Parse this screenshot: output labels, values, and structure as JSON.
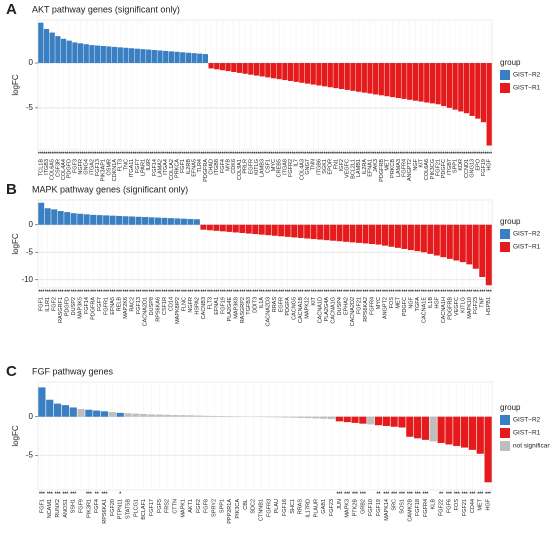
{
  "chart_data": [
    {
      "panel": "A",
      "type": "bar",
      "title": "AKT pathway genes (significant only)",
      "ylabel": "logFC",
      "legend_title": "group",
      "categories": [
        "TCL1B",
        "ITGB3",
        "COL6A5",
        "CSF3R",
        "COL4A4",
        "PDGFD",
        "FGF3",
        "NGFR",
        "GNG4",
        "ITGA2",
        "FGF13",
        "PIK3AP1",
        "OSMR",
        "CDKN1A",
        "FLT3",
        "TNC",
        "ITGA11",
        "FGF7",
        "LPAR1",
        "IL6R",
        "FGF14",
        "LAMA2",
        "ITGA4",
        "COL1A2",
        "PRKCA",
        "FGF1",
        "IL2RB",
        "EFNA5",
        "TLR4",
        "PDGFRA",
        "CHAD",
        "ITGB8",
        "FGF4",
        "MYB",
        "CDK6",
        "COL9A1",
        "PRLR",
        "EGFR",
        "KITLG",
        "LAMB3",
        "CSF1",
        "MYC",
        "CREB5",
        "ITGA8",
        "FGFR2",
        "IL7",
        "COL4A3",
        "GNG7",
        "TNN",
        "ITGB6",
        "SGK1",
        "EPOR",
        "FN1",
        "IGF2",
        "VEGFC",
        "BCL2L1",
        "LAMB1",
        "IL2RA",
        "EFNA1",
        "JAK3",
        "PDGFRB",
        "MET",
        "PRKCB",
        "LAMA3",
        "FGFR4",
        "ANGPT2",
        "NGF",
        "KIT",
        "COL6A6",
        "PIK3CG",
        "FGF21",
        "PDGFC",
        "ITGB7",
        "SPP1",
        "KDR",
        "CCND1",
        "GNG13",
        "EPO",
        "FGF19",
        "HGF"
      ],
      "series": [
        {
          "name": "GIST−R2",
          "color": "#3a7fc1",
          "values": [
            4.5,
            3.8,
            3.4,
            3.0,
            2.7,
            2.5,
            2.3,
            2.2,
            2.1,
            2.0,
            1.95,
            1.9,
            1.85,
            1.8,
            1.75,
            1.7,
            1.65,
            1.6,
            1.55,
            1.5,
            1.45,
            1.4,
            1.35,
            1.3,
            1.25,
            1.2,
            1.15,
            1.1,
            1.05,
            1.0,
            null,
            null,
            null,
            null,
            null,
            null,
            null,
            null,
            null,
            null,
            null,
            null,
            null,
            null,
            null,
            null,
            null,
            null,
            null,
            null,
            null,
            null,
            null,
            null,
            null,
            null,
            null,
            null,
            null,
            null,
            null,
            null,
            null,
            null,
            null,
            null,
            null,
            null,
            null,
            null,
            null,
            null,
            null,
            null,
            null,
            null,
            null,
            null,
            null,
            null
          ]
        },
        {
          "name": "GIST−R1",
          "color": "#e41a1c",
          "values": [
            null,
            null,
            null,
            null,
            null,
            null,
            null,
            null,
            null,
            null,
            null,
            null,
            null,
            null,
            null,
            null,
            null,
            null,
            null,
            null,
            null,
            null,
            null,
            null,
            null,
            null,
            null,
            null,
            null,
            null,
            -0.6,
            -0.7,
            -0.8,
            -0.9,
            -1.0,
            -1.1,
            -1.2,
            -1.3,
            -1.4,
            -1.5,
            -1.6,
            -1.7,
            -1.8,
            -1.9,
            -2.0,
            -2.1,
            -2.2,
            -2.3,
            -2.4,
            -2.5,
            -2.6,
            -2.7,
            -2.8,
            -2.9,
            -3.0,
            -3.1,
            -3.2,
            -3.3,
            -3.4,
            -3.5,
            -3.6,
            -3.7,
            -3.8,
            -3.9,
            -4.0,
            -4.1,
            -4.2,
            -4.3,
            -4.4,
            -4.5,
            -4.6,
            -4.8,
            -5.0,
            -5.2,
            -5.4,
            -5.6,
            -5.9,
            -6.2,
            -6.6,
            -9.2
          ]
        }
      ],
      "significance": [
        "***",
        "***",
        "***",
        "***",
        "***",
        "***",
        "***",
        "***",
        "***",
        "***",
        "***",
        "***",
        "***",
        "***",
        "***",
        "***",
        "***",
        "***",
        "***",
        "***",
        "***",
        "***",
        "***",
        "***",
        "***",
        "***",
        "***",
        "***",
        "***",
        "***",
        "***",
        "***",
        "***",
        "***",
        "***",
        "***",
        "***",
        "***",
        "***",
        "***",
        "***",
        "***",
        "***",
        "***",
        "***",
        "***",
        "***",
        "***",
        "***",
        "***",
        "***",
        "***",
        "***",
        "***",
        "***",
        "***",
        "***",
        "***",
        "***",
        "***",
        "***",
        "***",
        "***",
        "***",
        "***",
        "***",
        "***",
        "***",
        "***",
        "***",
        "***",
        "***",
        "***",
        "***",
        "***",
        "***",
        "***",
        "***",
        "***",
        "***"
      ],
      "ylim": [
        -9.7,
        4.8
      ],
      "yticks": [
        0,
        -5
      ],
      "grid": true
    },
    {
      "panel": "B",
      "type": "bar",
      "title": "MAPK pathway genes (significant only)",
      "ylabel": "logFC",
      "legend_title": "group",
      "categories": [
        "FGF1",
        "IL1R1",
        "FGF2",
        "RASGRF1",
        "PDGFD",
        "DUSP2",
        "MAP3K5",
        "FGF14",
        "PDGFRA",
        "FGF7",
        "FGFR1",
        "EFNA5",
        "RELB",
        "MAP2K6",
        "RAC2",
        "FGF13",
        "CACNA2D1",
        "DUSP8",
        "RPS6KA6",
        "CSF1R",
        "CD14",
        "MAPK8IP2",
        "FLNC",
        "NGFR",
        "HSPA2",
        "CACNB3",
        "FLT3",
        "EFNA1",
        "FGF19",
        "PLA2G4E",
        "MAP3K8",
        "RASGRP2",
        "TGFB3",
        "DDIT3",
        "IL1A",
        "CACNA2D3",
        "RRAS",
        "EGFR",
        "PDGFA",
        "CACNG5",
        "CACNA1B",
        "MAPK12",
        "KIT",
        "CACNA1D",
        "PLA2G4A",
        "CACNA1G",
        "DUSP4",
        "EPHA2",
        "CACNA2D2",
        "FGF21",
        "RPS6KA2",
        "FGFR4",
        "MYC",
        "ANGPT2",
        "FOS",
        "MET",
        "PDGFC",
        "NGF",
        "TGFA",
        "CACNA1E",
        "IL1B",
        "HGF",
        "CACNA1H",
        "PDGFRB",
        "VEGFC",
        "KITLG",
        "MAPK10",
        "FGF23",
        "TNF",
        "HSPB1"
      ],
      "series": [
        {
          "name": "GIST−R2",
          "color": "#3a7fc1",
          "values": [
            4.0,
            3.0,
            2.8,
            2.5,
            2.3,
            2.1,
            2.0,
            1.9,
            1.8,
            1.75,
            1.7,
            1.65,
            1.6,
            1.55,
            1.5,
            1.45,
            1.4,
            1.35,
            1.3,
            1.25,
            1.2,
            1.15,
            1.1,
            1.05,
            1.0,
            null,
            null,
            null,
            null,
            null,
            null,
            null,
            null,
            null,
            null,
            null,
            null,
            null,
            null,
            null,
            null,
            null,
            null,
            null,
            null,
            null,
            null,
            null,
            null,
            null,
            null,
            null,
            null,
            null,
            null,
            null,
            null,
            null,
            null,
            null,
            null,
            null,
            null,
            null,
            null,
            null,
            null,
            null,
            null,
            null
          ]
        },
        {
          "name": "GIST−R1",
          "color": "#e41a1c",
          "values": [
            null,
            null,
            null,
            null,
            null,
            null,
            null,
            null,
            null,
            null,
            null,
            null,
            null,
            null,
            null,
            null,
            null,
            null,
            null,
            null,
            null,
            null,
            null,
            null,
            null,
            -0.9,
            -1.0,
            -1.1,
            -1.2,
            -1.3,
            -1.4,
            -1.5,
            -1.6,
            -1.7,
            -1.8,
            -1.9,
            -2.0,
            -2.1,
            -2.2,
            -2.3,
            -2.4,
            -2.5,
            -2.6,
            -2.7,
            -2.8,
            -2.9,
            -3.0,
            -3.1,
            -3.2,
            -3.3,
            -3.4,
            -3.5,
            -3.6,
            -3.8,
            -4.0,
            -4.2,
            -4.4,
            -4.6,
            -4.8,
            -5.0,
            -5.3,
            -5.6,
            -5.9,
            -6.2,
            -6.5,
            -6.8,
            -7.2,
            -8.0,
            -9.5,
            -11.0
          ]
        }
      ],
      "significance": [
        "***",
        "***",
        "***",
        "***",
        "***",
        "***",
        "***",
        "***",
        "***",
        "***",
        "***",
        "***",
        "***",
        "***",
        "***",
        "***",
        "***",
        "***",
        "***",
        "***",
        "***",
        "***",
        "***",
        "***",
        "***",
        "***",
        "***",
        "***",
        "***",
        "***",
        "***",
        "***",
        "***",
        "***",
        "***",
        "***",
        "***",
        "***",
        "***",
        "***",
        "***",
        "***",
        "***",
        "***",
        "***",
        "***",
        "***",
        "***",
        "***",
        "***",
        "***",
        "***",
        "***",
        "***",
        "***",
        "***",
        "***",
        "***",
        "***",
        "***",
        "***",
        "***",
        "***",
        "***",
        "***",
        "***",
        "***",
        "***",
        "***",
        "***"
      ],
      "ylim": [
        -11.5,
        4.5
      ],
      "yticks": [
        0,
        -5,
        -10
      ],
      "grid": true
    },
    {
      "panel": "C",
      "type": "bar",
      "title": "FGF pathway genes",
      "ylabel": "logFC",
      "legend_title": "group",
      "categories": [
        "FGF1",
        "NCAM1",
        "RUNX2",
        "ANOS1",
        "SSH1",
        "FGF9",
        "PIK3R1",
        "FGF4",
        "RPS6KA1",
        "FGF20",
        "PTPN11",
        "STAT5B",
        "PLCG1",
        "BCLAF1",
        "FGF17",
        "FGF5",
        "FRS2",
        "CTTN",
        "MAPK1",
        "AKT1",
        "FGF2",
        "FGF8",
        "SPRY2",
        "SPP1",
        "PPP2R1A",
        "PIK3CA",
        "CBL",
        "SDC2",
        "CTNNB1",
        "FGFR3",
        "PLAU",
        "FGF16",
        "SHC1",
        "RRAS",
        "IL17RD",
        "PLAUR",
        "GAB1",
        "FGF23",
        "JUN",
        "MAPK3",
        "PTK2B",
        "GRB2",
        "FGF10",
        "FGF19",
        "MAPK14",
        "SRC",
        "SOS1",
        "CAMK2B",
        "FGF18",
        "FGFR4",
        "KLB",
        "FGF22",
        "FGF6",
        "FOS",
        "FGF21",
        "CD44",
        "MET",
        "HGF"
      ],
      "series": [
        {
          "name": "GIST−R2",
          "color": "#3a7fc1",
          "values": [
            3.8,
            2.2,
            1.7,
            1.5,
            1.2,
            null,
            0.9,
            0.8,
            0.7,
            null,
            0.5,
            null,
            null,
            null,
            null,
            null,
            null,
            null,
            null,
            null,
            null,
            null,
            null,
            null,
            null,
            null,
            null,
            null,
            null,
            null,
            null,
            null,
            null,
            null,
            null,
            null,
            null,
            null,
            null,
            null,
            null,
            null,
            null,
            null,
            null,
            null,
            null,
            null,
            null,
            null,
            null,
            null,
            null,
            null,
            null,
            null,
            null,
            null
          ]
        },
        {
          "name": "GIST−R1",
          "color": "#e41a1c",
          "values": [
            null,
            null,
            null,
            null,
            null,
            null,
            null,
            null,
            null,
            null,
            null,
            null,
            null,
            null,
            null,
            null,
            null,
            null,
            null,
            null,
            null,
            null,
            null,
            null,
            null,
            null,
            null,
            null,
            null,
            null,
            null,
            null,
            null,
            null,
            null,
            null,
            null,
            null,
            -0.6,
            -0.7,
            -0.8,
            -0.9,
            null,
            -1.1,
            -1.2,
            -1.3,
            -1.4,
            -2.6,
            -2.8,
            -3.0,
            null,
            -3.4,
            -3.6,
            -3.8,
            -4.0,
            -4.3,
            -4.8,
            -8.5
          ]
        },
        {
          "name": "not significant",
          "color": "#bebebe",
          "values": [
            null,
            null,
            null,
            null,
            null,
            1.0,
            null,
            null,
            null,
            0.6,
            null,
            0.45,
            0.4,
            0.35,
            0.3,
            0.28,
            0.25,
            0.22,
            0.2,
            0.18,
            0.15,
            0.12,
            0.1,
            0.08,
            0.06,
            0.04,
            0.02,
            -0.02,
            -0.04,
            -0.06,
            -0.08,
            -0.1,
            -0.12,
            -0.15,
            -0.18,
            -0.22,
            -0.26,
            -0.3,
            null,
            null,
            null,
            null,
            -1.0,
            null,
            null,
            null,
            null,
            null,
            null,
            null,
            -3.2,
            null,
            null,
            null,
            null,
            null,
            null,
            null
          ]
        }
      ],
      "significance": [
        "***",
        "***",
        "***",
        "***",
        "***",
        null,
        "***",
        "**",
        "***",
        null,
        "*",
        null,
        null,
        null,
        null,
        null,
        null,
        null,
        null,
        null,
        null,
        null,
        null,
        null,
        null,
        null,
        null,
        null,
        null,
        null,
        null,
        null,
        null,
        null,
        null,
        null,
        null,
        null,
        "***",
        "***",
        "***",
        "***",
        null,
        "**",
        "***",
        "***",
        "***",
        "***",
        "***",
        "***",
        null,
        "**",
        "***",
        "***",
        "***",
        "***",
        "***",
        "***"
      ],
      "ylim": [
        -9.5,
        4.5
      ],
      "yticks": [
        0,
        -5
      ],
      "grid": true
    }
  ]
}
